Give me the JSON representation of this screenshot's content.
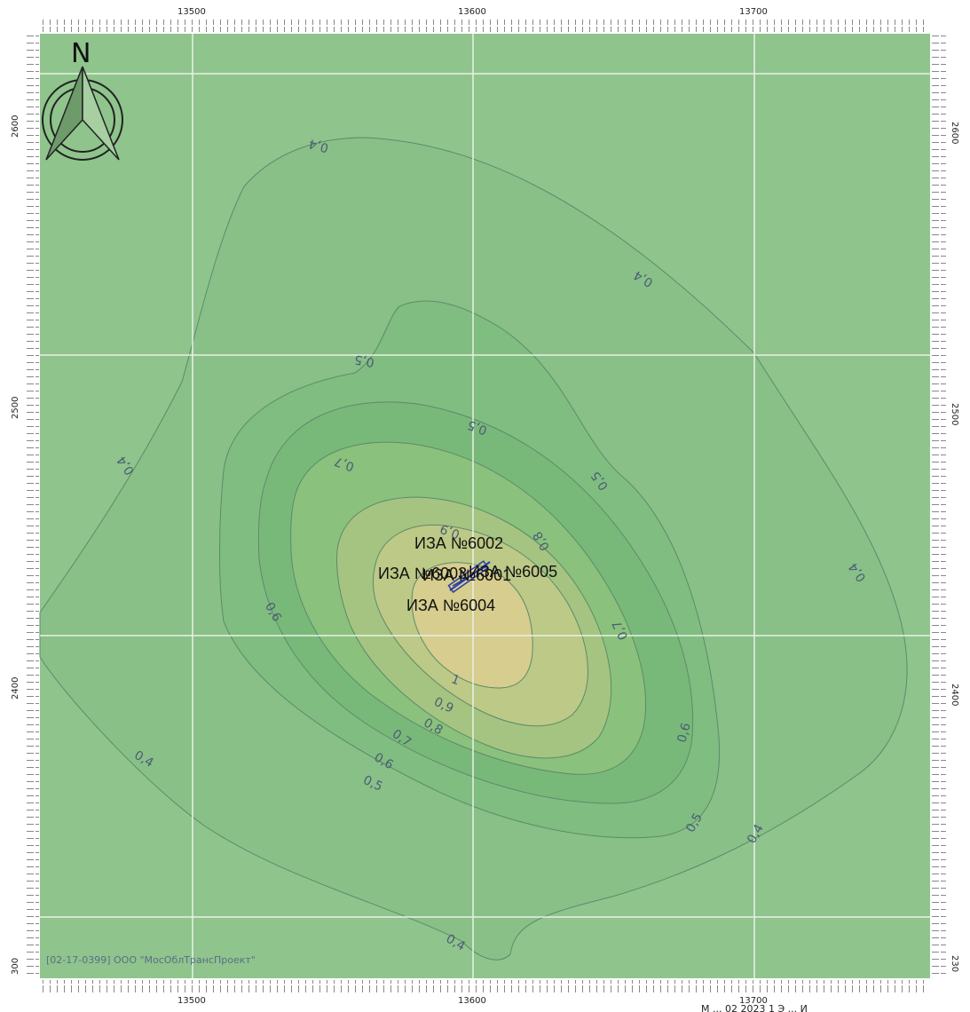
{
  "map": {
    "x_ticks": [
      "13500",
      "13600",
      "13700"
    ],
    "y_ticks_left": [
      "2600",
      "2500",
      "2400",
      "300"
    ],
    "y_ticks_right": [
      "2600",
      "2500",
      "2400",
      "230"
    ],
    "compass_letter": "N",
    "credit": "[02-17-0399] ООО \"МосОблТрансПроект\"",
    "footer_text": "М ... 02 2023 1 Э ... И",
    "sources": [
      "ИЗА №6002",
      "ИЗА №6003",
      "ИЗА №6005",
      "ИЗА №6001",
      "ИЗА №6004"
    ],
    "contour_levels": [
      0.4,
      0.5,
      0.6,
      0.7,
      0.8,
      0.9,
      1
    ],
    "contour_labels": [
      "0,4",
      "0,4",
      "0,4",
      "0,4",
      "0,4",
      "0,4",
      "0,4",
      "0,5",
      "0,5",
      "0,5",
      "0,5",
      "0,5",
      "0,6",
      "0,6",
      "0,6",
      "0,7",
      "0,7",
      "0,7",
      "0,8",
      "0,8",
      "0,9",
      "0,9",
      "1"
    ],
    "colors": {
      "background": "#8fc48d",
      "zone_0_5": "#86bf86",
      "zone_0_6": "#7cbb7c",
      "zone_0_7": "#8dc17c",
      "zone_0_8": "#a8c682",
      "zone_0_9": "#bfcb88",
      "zone_1": "#d6cd8e",
      "contour_line": "#5e8a6a",
      "source_outline": "#2c3da6"
    }
  }
}
